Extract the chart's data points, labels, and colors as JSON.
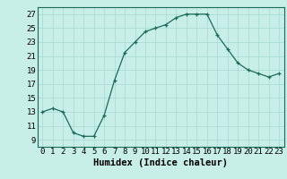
{
  "x": [
    0,
    1,
    2,
    3,
    4,
    5,
    6,
    7,
    8,
    9,
    10,
    11,
    12,
    13,
    14,
    15,
    16,
    17,
    18,
    19,
    20,
    21,
    22,
    23
  ],
  "y": [
    13,
    13.5,
    13,
    10,
    9.5,
    9.5,
    12.5,
    17.5,
    21.5,
    23,
    24.5,
    25,
    25.5,
    26.5,
    27,
    27,
    27,
    24,
    22,
    20,
    19,
    18.5,
    18,
    18.5
  ],
  "line_color": "#1a6b5a",
  "marker": "+",
  "bg_color": "#c8eee8",
  "grid_color": "#a8d8d0",
  "xlabel": "Humidex (Indice chaleur)",
  "xlim": [
    -0.5,
    23.5
  ],
  "ylim": [
    8,
    28
  ],
  "yticks": [
    9,
    11,
    13,
    15,
    17,
    19,
    21,
    23,
    25,
    27
  ],
  "xticks": [
    0,
    1,
    2,
    3,
    4,
    5,
    6,
    7,
    8,
    9,
    10,
    11,
    12,
    13,
    14,
    15,
    16,
    17,
    18,
    19,
    20,
    21,
    22,
    23
  ],
  "label_fontsize": 7.5,
  "tick_fontsize": 6.5
}
